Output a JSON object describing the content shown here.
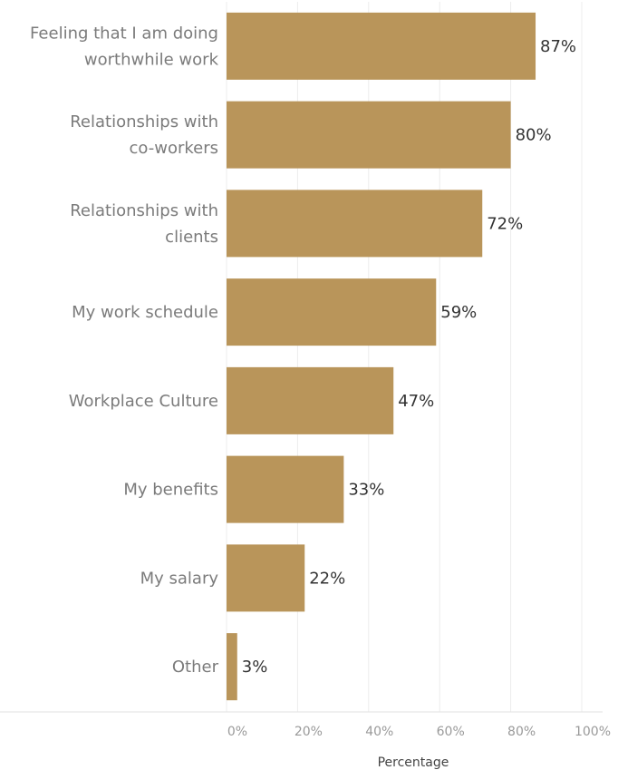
{
  "chart_data": {
    "type": "bar",
    "orientation": "horizontal",
    "categories": [
      [
        "Feeling that I am doing",
        "worthwhile work"
      ],
      [
        "Relationships with",
        "co-workers"
      ],
      [
        "Relationships with",
        "clients"
      ],
      [
        "My work schedule"
      ],
      [
        "Workplace Culture"
      ],
      [
        "My benefits"
      ],
      [
        "My salary"
      ],
      [
        "Other"
      ]
    ],
    "values": [
      87,
      80,
      72,
      59,
      47,
      33,
      22,
      3
    ],
    "value_labels": [
      "87%",
      "80%",
      "72%",
      "59%",
      "47%",
      "33%",
      "22%",
      "3%"
    ],
    "xlabel": "Percentage",
    "xlim": [
      0,
      100
    ],
    "xticks": [
      0,
      20,
      40,
      60,
      80,
      100
    ],
    "xtick_labels": [
      "0%",
      "20%",
      "40%",
      "60%",
      "80%",
      "100%"
    ],
    "bar_color": "#b9955a",
    "grid": "vertical",
    "legend": "none"
  }
}
